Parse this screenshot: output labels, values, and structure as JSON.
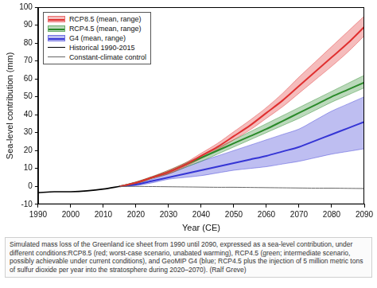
{
  "chart_data": {
    "type": "line",
    "x_label": "Year (CE)",
    "y_label": "Sea-level contribution (mm)",
    "x": [
      1990,
      1995,
      2000,
      2005,
      2010,
      2015,
      2020,
      2025,
      2030,
      2035,
      2040,
      2045,
      2050,
      2055,
      2060,
      2065,
      2070,
      2075,
      2080,
      2085,
      2090
    ],
    "series": [
      {
        "name": "RCP8.5 (mean, range)",
        "color": "#e03030",
        "values": [
          null,
          null,
          null,
          null,
          null,
          0,
          2,
          5,
          8,
          12,
          17,
          22,
          28,
          34,
          41,
          48,
          56,
          64,
          72,
          80,
          89
        ],
        "low": [
          null,
          null,
          null,
          null,
          null,
          0,
          1.5,
          4.5,
          7,
          11,
          15.5,
          20.5,
          26,
          31.5,
          38,
          44.5,
          52,
          59.5,
          67,
          75,
          84
        ],
        "high": [
          null,
          null,
          null,
          null,
          null,
          0,
          2.5,
          5.5,
          9,
          13,
          18.5,
          24,
          30.5,
          37,
          44,
          52,
          61,
          69.5,
          78,
          86.5,
          95
        ]
      },
      {
        "name": "RCP4.5 (mean, range)",
        "color": "#2a8a2a",
        "values": [
          null,
          null,
          null,
          null,
          null,
          0,
          2,
          5,
          8,
          12,
          16,
          20,
          24,
          28,
          32,
          36.5,
          41,
          45.5,
          50,
          54,
          58
        ],
        "low": [
          null,
          null,
          null,
          null,
          null,
          0,
          1.5,
          4.5,
          7,
          10.5,
          14,
          18,
          22,
          26,
          30,
          34,
          38,
          42.5,
          47,
          51,
          55
        ],
        "high": [
          null,
          null,
          null,
          null,
          null,
          0,
          2.5,
          5.5,
          9,
          13,
          17,
          21.5,
          26,
          30.5,
          35,
          39.5,
          44,
          48.5,
          53,
          57.5,
          62
        ]
      },
      {
        "name": "G4 (mean, range)",
        "color": "#3535d5",
        "values": [
          null,
          null,
          null,
          null,
          null,
          0,
          1,
          3,
          5,
          7,
          9,
          11,
          13,
          15,
          17,
          19.5,
          22,
          25.5,
          29,
          32.5,
          36
        ],
        "low": [
          null,
          null,
          null,
          null,
          null,
          0,
          0.5,
          2,
          4,
          5,
          6,
          7.5,
          9,
          10,
          11,
          12.5,
          14,
          16,
          18,
          19.5,
          21
        ],
        "high": [
          null,
          null,
          null,
          null,
          null,
          0,
          1.5,
          4,
          7,
          10.5,
          14,
          17,
          20,
          23,
          26,
          29,
          32,
          37,
          42,
          46,
          50
        ]
      },
      {
        "name": "Historical 1990-2015",
        "color": "#000000",
        "values": [
          -3.5,
          -3,
          -3,
          -2.5,
          -1.5,
          0,
          null,
          null,
          null,
          null,
          null,
          null,
          null,
          null,
          null,
          null,
          null,
          null,
          null,
          null,
          null
        ]
      },
      {
        "name": "Constant-climate control",
        "color": "#666666",
        "values": [
          null,
          null,
          null,
          null,
          null,
          0,
          0,
          -0.1,
          -0.2,
          -0.3,
          -0.4,
          -0.5,
          -0.5,
          -0.6,
          -0.7,
          -0.8,
          -0.9,
          -1,
          -1,
          -1.1,
          -1.2
        ]
      }
    ],
    "xlim": [
      1990,
      2090
    ],
    "xticks": [
      1990,
      2000,
      2010,
      2020,
      2030,
      2040,
      2050,
      2060,
      2070,
      2080,
      2090
    ],
    "ylim": [
      -10,
      100
    ],
    "yticks": [
      -10,
      0,
      10,
      20,
      30,
      40,
      50,
      60,
      70,
      80,
      90,
      100
    ],
    "grid": false,
    "legend": "upper left"
  },
  "caption": "Simulated mass loss of the Greenland ice sheet from 1990 until 2090, expressed as a sea-level contribution, under different conditions:RCP8.5 (red; worst-case scenario, unabated warming), RCP4.5 (green; intermediate scenario, possibly achievable under current conditions), and GeoMIP G4 (blue; RCP4.5 plus the injection of 5 million metric tons of sulfur dioxide per year into the stratosphere during 2020–2070). (Ralf Greve)"
}
